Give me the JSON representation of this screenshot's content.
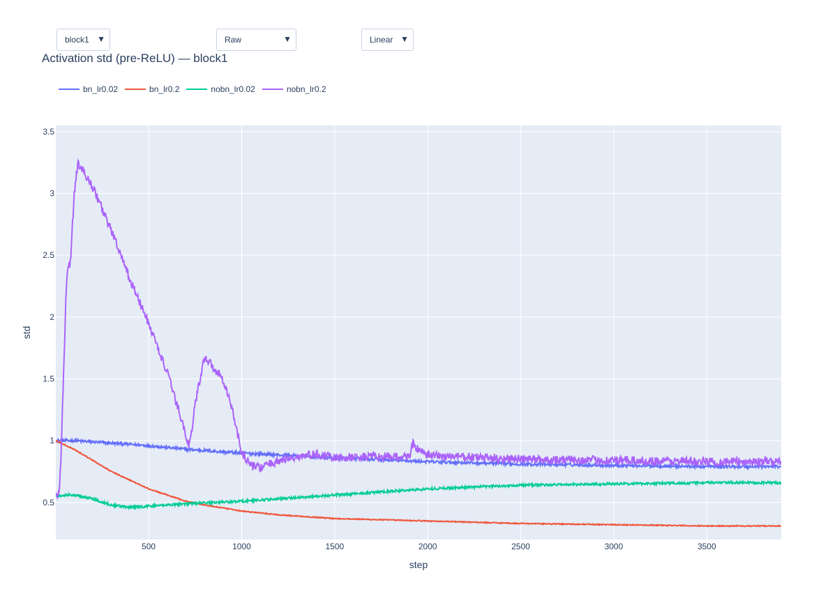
{
  "controls": {
    "block_dropdown": "block1",
    "mode_dropdown": "Raw",
    "scale_dropdown": "Linear",
    "arrow": "▼"
  },
  "chart_data": {
    "type": "line",
    "title": "Activation std (pre-ReLU) — block1",
    "xlabel": "step",
    "ylabel": "std",
    "xlim": [
      1,
      3900
    ],
    "ylim": [
      0.2,
      3.55
    ],
    "x_ticks": [
      500,
      1000,
      1500,
      2000,
      2500,
      3000,
      3500
    ],
    "y_ticks": [
      0.5,
      1,
      1.5,
      2,
      2.5,
      3,
      3.5
    ],
    "y_tick_labels": [
      "0.5",
      "1",
      "1.5",
      "2",
      "2.5",
      "3",
      "3.5"
    ],
    "grid": true,
    "legend_position": "top-left, horizontal",
    "plot_bg": "#e5ecf6",
    "series": [
      {
        "name": "bn_lr0.02",
        "color": "#636efa",
        "noise": 0.012,
        "x": [
          1,
          100,
          300,
          500,
          700,
          1000,
          1500,
          2000,
          2500,
          3000,
          3500,
          3900
        ],
        "y": [
          1.0,
          1.0,
          0.98,
          0.96,
          0.93,
          0.9,
          0.86,
          0.83,
          0.81,
          0.8,
          0.79,
          0.79
        ]
      },
      {
        "name": "bn_lr0.2",
        "color": "#ef553b",
        "noise": 0.004,
        "x": [
          1,
          100,
          200,
          300,
          400,
          500,
          600,
          700,
          800,
          1000,
          1200,
          1500,
          2000,
          2500,
          3000,
          3500,
          3900
        ],
        "y": [
          1.0,
          0.93,
          0.84,
          0.75,
          0.68,
          0.61,
          0.56,
          0.51,
          0.48,
          0.43,
          0.4,
          0.37,
          0.35,
          0.33,
          0.32,
          0.31,
          0.31
        ]
      },
      {
        "name": "nobn_lr0.02",
        "color": "#00cc96",
        "noise": 0.01,
        "x": [
          1,
          50,
          100,
          200,
          300,
          400,
          500,
          700,
          1000,
          1500,
          2000,
          2500,
          3000,
          3500,
          3900
        ],
        "y": [
          0.55,
          0.56,
          0.56,
          0.53,
          0.48,
          0.46,
          0.47,
          0.49,
          0.51,
          0.56,
          0.61,
          0.64,
          0.65,
          0.66,
          0.66
        ]
      },
      {
        "name": "nobn_lr0.2",
        "color": "#ab63fa",
        "noise": 0.035,
        "x": [
          1,
          20,
          30,
          50,
          60,
          80,
          100,
          120,
          200,
          300,
          400,
          500,
          600,
          700,
          720,
          750,
          800,
          900,
          950,
          1000,
          1050,
          1100,
          1200,
          1300,
          1400,
          1500,
          1700,
          1900,
          1920,
          1950,
          2000,
          2500,
          3000,
          3500,
          3900
        ],
        "y": [
          0.55,
          0.57,
          0.9,
          1.9,
          2.35,
          2.45,
          3.0,
          3.25,
          3.05,
          2.7,
          2.3,
          1.95,
          1.55,
          1.05,
          0.95,
          1.3,
          1.68,
          1.5,
          1.25,
          0.9,
          0.8,
          0.78,
          0.84,
          0.87,
          0.89,
          0.86,
          0.87,
          0.87,
          0.98,
          0.92,
          0.88,
          0.85,
          0.84,
          0.83,
          0.83
        ]
      }
    ]
  }
}
